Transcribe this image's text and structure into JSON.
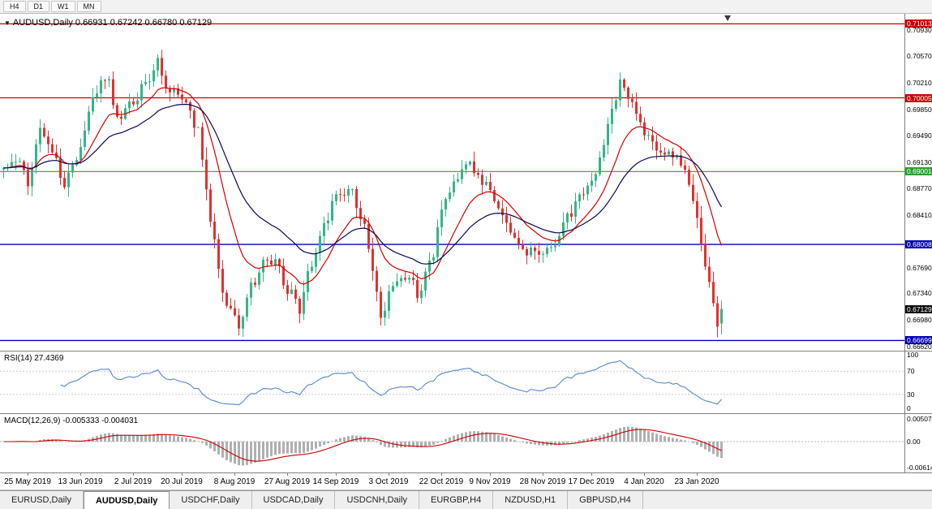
{
  "toolbar": {
    "timeframes": [
      "H4",
      "D1",
      "W1",
      "MN"
    ]
  },
  "chart": {
    "symbol_label": "AUDUSD,Daily",
    "ohlc_text": "0.66931 0.67242 0.66780 0.67129",
    "current_price_label": "0.67129",
    "colors": {
      "up": "#35b586",
      "down": "#e23030",
      "ma_fast": "#d40000",
      "ma_slow": "#0a0a55",
      "current_label_bg": "#0b0b0b"
    }
  },
  "chart_data": {
    "type": "candlestick",
    "title": "AUDUSD,Daily",
    "bars_total": 178,
    "ylim": [
      0.6656,
      0.7115
    ],
    "close_anchors": [
      [
        0,
        0.6905
      ],
      [
        3,
        0.6922
      ],
      [
        6,
        0.6888
      ],
      [
        9,
        0.6958
      ],
      [
        12,
        0.6925
      ],
      [
        15,
        0.6882
      ],
      [
        19,
        0.693
      ],
      [
        22,
        0.6998
      ],
      [
        25,
        0.7034
      ],
      [
        28,
        0.6976
      ],
      [
        32,
        0.6992
      ],
      [
        35,
        0.7028
      ],
      [
        38,
        0.7046
      ],
      [
        41,
        0.7012
      ],
      [
        44,
        0.7
      ],
      [
        48,
        0.6958
      ],
      [
        50,
        0.688
      ],
      [
        52,
        0.68
      ],
      [
        54,
        0.674
      ],
      [
        56,
        0.6705
      ],
      [
        58,
        0.669
      ],
      [
        61,
        0.6745
      ],
      [
        64,
        0.6775
      ],
      [
        67,
        0.6782
      ],
      [
        70,
        0.6736
      ],
      [
        73,
        0.6716
      ],
      [
        76,
        0.6772
      ],
      [
        79,
        0.683
      ],
      [
        82,
        0.6868
      ],
      [
        85,
        0.688
      ],
      [
        88,
        0.6842
      ],
      [
        91,
        0.6772
      ],
      [
        93,
        0.67
      ],
      [
        96,
        0.6746
      ],
      [
        99,
        0.6762
      ],
      [
        102,
        0.6736
      ],
      [
        105,
        0.6772
      ],
      [
        108,
        0.685
      ],
      [
        111,
        0.6882
      ],
      [
        114,
        0.6912
      ],
      [
        117,
        0.6896
      ],
      [
        120,
        0.6872
      ],
      [
        123,
        0.684
      ],
      [
        126,
        0.6806
      ],
      [
        129,
        0.679
      ],
      [
        133,
        0.6786
      ],
      [
        136,
        0.6802
      ],
      [
        139,
        0.6842
      ],
      [
        142,
        0.6862
      ],
      [
        145,
        0.6882
      ],
      [
        148,
        0.6935
      ],
      [
        150,
        0.6985
      ],
      [
        152,
        0.7025
      ],
      [
        155,
        0.699
      ],
      [
        158,
        0.6955
      ],
      [
        161,
        0.693
      ],
      [
        165,
        0.6925
      ],
      [
        168,
        0.6905
      ],
      [
        170,
        0.686
      ],
      [
        172,
        0.6805
      ],
      [
        174,
        0.6745
      ],
      [
        176,
        0.669
      ],
      [
        177,
        0.67129
      ]
    ],
    "last_bar": {
      "open": 0.66931,
      "high": 0.67242,
      "low": 0.6678,
      "close": 0.67129
    },
    "x_labels": [
      {
        "index": 6,
        "label": "25 May 2019"
      },
      {
        "index": 19,
        "label": "13 Jun 2019"
      },
      {
        "index": 32,
        "label": "2 Jul 2019"
      },
      {
        "index": 44,
        "label": "20 Jul 2019"
      },
      {
        "index": 57,
        "label": "8 Aug 2019"
      },
      {
        "index": 70,
        "label": "27 Aug 2019"
      },
      {
        "index": 82,
        "label": "14 Sep 2019"
      },
      {
        "index": 95,
        "label": "3 Oct 2019"
      },
      {
        "index": 108,
        "label": "22 Oct 2019"
      },
      {
        "index": 120,
        "label": "9 Nov 2019"
      },
      {
        "index": 133,
        "label": "28 Nov 2019"
      },
      {
        "index": 145,
        "label": "17 Dec 2019"
      },
      {
        "index": 158,
        "label": "4 Jan 2020"
      },
      {
        "index": 171,
        "label": "23 Jan 2020"
      }
    ],
    "hlines": [
      {
        "price": 0.71013,
        "label": "0.71013",
        "color": "#cc0000",
        "width": 1.2
      },
      {
        "price": 0.70005,
        "label": "0.70005",
        "color": "#cc0000",
        "width": 1.2
      },
      {
        "price": 0.69001,
        "label": "0.69001",
        "color": "#2f9e2f",
        "width": 1.2
      },
      {
        "price": 0.68008,
        "label": "0.68008",
        "color": "#0000bb",
        "width": 1.4
      },
      {
        "price": 0.66699,
        "label": "0.66699",
        "color": "#0000bb",
        "width": 1.4
      }
    ],
    "price_ticks": [
      "0.70930",
      "0.70570",
      "0.70210",
      "0.69850",
      "0.69490",
      "0.69130",
      "0.68770",
      "0.68410",
      "0.67690",
      "0.67340",
      "0.66980",
      "0.66620"
    ],
    "overlays": [
      {
        "name": "ma-fast-line",
        "period": 13,
        "color": "#d40000"
      },
      {
        "name": "ma-slow-line",
        "period": 30,
        "color": "#0a0a55"
      }
    ]
  },
  "rsi": {
    "label": "RSI(14) 27.4369",
    "period": 14,
    "last_value": 27.4369,
    "levels": [
      "100",
      "70",
      "30",
      "0"
    ],
    "line_color": "#5588cc"
  },
  "macd": {
    "label": "MACD(12,26,9) -0.005333 -0.004031",
    "fast": 12,
    "slow": 26,
    "signal": 9,
    "main_value": -0.005333,
    "signal_value": -0.004031,
    "axis_ticks": [
      "0.00507",
      "0.00",
      "-0.00614"
    ],
    "ylim": [
      -0.00614,
      0.00507
    ],
    "hist_color": "#b0b0b0",
    "signal_color": "#cc0000"
  },
  "tabs": {
    "items": [
      {
        "label": "EURUSD,Daily",
        "active": false
      },
      {
        "label": "AUDUSD,Daily",
        "active": true
      },
      {
        "label": "USDCHF,Daily",
        "active": false
      },
      {
        "label": "USDCAD,Daily",
        "active": false
      },
      {
        "label": "USDCNH,Daily",
        "active": false
      },
      {
        "label": "EURGBP,H4",
        "active": false
      },
      {
        "label": "NZDUSD,H1",
        "active": false
      },
      {
        "label": "GBPUSD,H4",
        "active": false
      }
    ]
  }
}
